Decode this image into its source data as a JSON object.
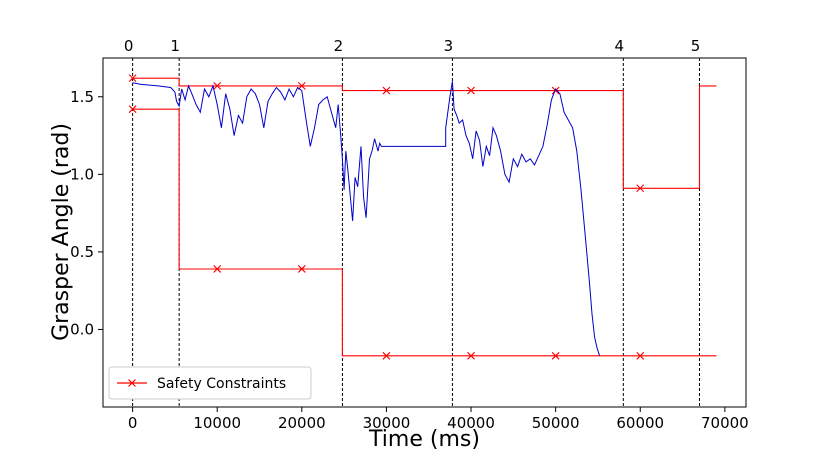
{
  "chart_data": {
    "type": "line",
    "xlabel": "Time (ms)",
    "ylabel": "Grasper Angle (rad)",
    "xlim": [
      -3500,
      72500
    ],
    "ylim": [
      -0.5,
      1.75
    ],
    "xticks": [
      0,
      10000,
      20000,
      30000,
      40000,
      50000,
      60000,
      70000
    ],
    "yticks": [
      0.0,
      0.5,
      1.0,
      1.5
    ],
    "xtick_labels": [
      "0",
      "10000",
      "20000",
      "30000",
      "40000",
      "50000",
      "60000",
      "70000"
    ],
    "ytick_labels": [
      "0.0",
      "0.5",
      "1.0",
      "1.5"
    ],
    "segment_boundaries": [
      {
        "label": "0",
        "x": 0
      },
      {
        "label": "1",
        "x": 5500
      },
      {
        "label": "2",
        "x": 24800
      },
      {
        "label": "3",
        "x": 37800
      },
      {
        "label": "4",
        "x": 58000
      },
      {
        "label": "5",
        "x": 67000
      }
    ],
    "legend": {
      "position": "lower-left",
      "entries": [
        "Safety Constraints"
      ]
    },
    "colors": {
      "constraints": "#ff0000",
      "trajectory": "#0000cc",
      "boundaries": "#000000"
    },
    "series": [
      {
        "name": "Safety Constraints",
        "role": "upper",
        "color": "#ff0000",
        "marker": "x",
        "x": [
          0,
          5500,
          5500,
          24800,
          24800,
          58000,
          58000,
          67000,
          67000,
          69000
        ],
        "y": [
          1.62,
          1.62,
          1.57,
          1.57,
          1.54,
          1.54,
          0.91,
          0.91,
          1.57,
          1.57
        ],
        "marker_points": [
          [
            0,
            1.62
          ],
          [
            10000,
            1.57
          ],
          [
            20000,
            1.57
          ],
          [
            30000,
            1.54
          ],
          [
            40000,
            1.54
          ],
          [
            50000,
            1.54
          ],
          [
            60000,
            0.91
          ]
        ]
      },
      {
        "role": "lower",
        "color": "#ff0000",
        "marker": "x",
        "x": [
          0,
          5500,
          5500,
          24800,
          24800,
          69000
        ],
        "y": [
          1.42,
          1.42,
          0.39,
          0.39,
          -0.17,
          -0.17
        ],
        "marker_points": [
          [
            0,
            1.42
          ],
          [
            10000,
            0.39
          ],
          [
            20000,
            0.39
          ],
          [
            30000,
            -0.17
          ],
          [
            40000,
            -0.17
          ],
          [
            50000,
            -0.17
          ],
          [
            60000,
            -0.17
          ]
        ]
      },
      {
        "role": "trajectory",
        "color": "#0000cc",
        "x": [
          0,
          1000,
          3000,
          4500,
          5000,
          5200,
          5500,
          5800,
          6200,
          6600,
          7000,
          7500,
          8000,
          8500,
          9000,
          9500,
          10000,
          10500,
          11000,
          11500,
          12000,
          12500,
          13000,
          13500,
          14000,
          14500,
          15000,
          15500,
          16000,
          16500,
          17000,
          17500,
          18000,
          18500,
          19000,
          19500,
          20000,
          20500,
          21000,
          21500,
          22000,
          22500,
          23000,
          23500,
          24000,
          24300,
          24600,
          24800,
          25000,
          25200,
          25400,
          25700,
          26000,
          26300,
          26600,
          27000,
          27300,
          27600,
          28000,
          28300,
          28600,
          29000,
          29200,
          29400,
          29400,
          37000,
          37000,
          37500,
          37800,
          38000,
          38300,
          38600,
          39000,
          39400,
          39800,
          40200,
          40600,
          41000,
          41400,
          41800,
          42200,
          42600,
          43000,
          43500,
          44000,
          44500,
          45000,
          45500,
          46000,
          46500,
          47000,
          47500,
          48000,
          48500,
          49000,
          49500,
          50000,
          50500,
          51000,
          51500,
          52000,
          52500,
          53000,
          53500,
          54000,
          54300,
          54600,
          54900,
          55200
        ],
        "y": [
          1.59,
          1.58,
          1.57,
          1.56,
          1.53,
          1.47,
          1.44,
          1.55,
          1.48,
          1.57,
          1.52,
          1.45,
          1.4,
          1.55,
          1.5,
          1.57,
          1.45,
          1.3,
          1.52,
          1.42,
          1.25,
          1.38,
          1.33,
          1.5,
          1.55,
          1.52,
          1.45,
          1.3,
          1.47,
          1.52,
          1.56,
          1.53,
          1.48,
          1.55,
          1.5,
          1.56,
          1.54,
          1.35,
          1.18,
          1.3,
          1.45,
          1.48,
          1.5,
          1.4,
          1.3,
          1.45,
          1.25,
          1.1,
          0.9,
          1.15,
          1.05,
          0.88,
          0.7,
          0.98,
          0.92,
          1.18,
          0.85,
          0.72,
          1.1,
          1.15,
          1.23,
          1.15,
          1.2,
          1.18,
          1.18,
          1.18,
          1.3,
          1.5,
          1.6,
          1.42,
          1.38,
          1.33,
          1.35,
          1.25,
          1.2,
          1.1,
          1.28,
          1.22,
          1.05,
          1.18,
          1.12,
          1.3,
          1.25,
          1.15,
          1.0,
          0.95,
          1.1,
          1.05,
          1.13,
          1.08,
          1.1,
          1.06,
          1.12,
          1.18,
          1.32,
          1.48,
          1.55,
          1.52,
          1.4,
          1.35,
          1.3,
          1.15,
          0.9,
          0.6,
          0.3,
          0.1,
          -0.05,
          -0.12,
          -0.17
        ]
      }
    ]
  }
}
